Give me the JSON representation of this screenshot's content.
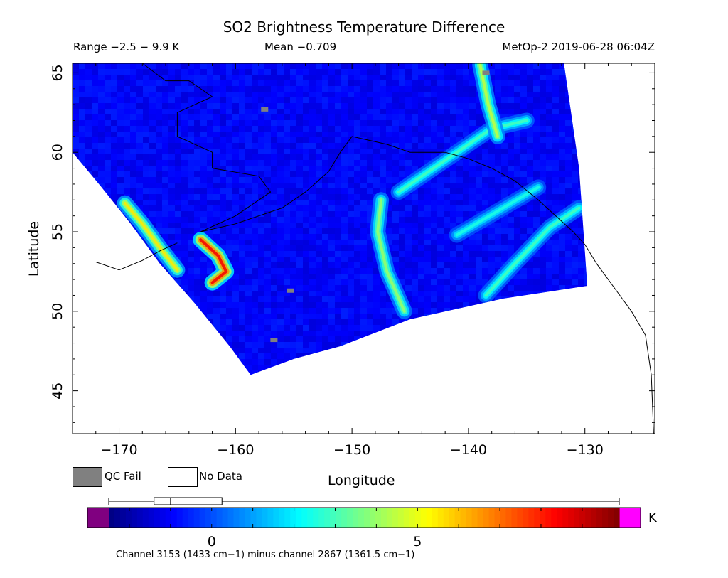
{
  "header": {
    "title": "SO2 Brightness Temperature Difference",
    "range": "Range −2.5 − 9.9 K",
    "mean": "Mean −0.709",
    "satellite_time": "MetOp-2 2019-06-28 06:04Z"
  },
  "legend": {
    "qc_fail": "QC Fail",
    "no_data": "No Data",
    "qc_color": "#808080",
    "no_data_color": "#ffffff"
  },
  "colorbar": {
    "unit": "K",
    "ticks": [
      {
        "value": 0,
        "label": "0"
      },
      {
        "value": 5,
        "label": "5"
      }
    ],
    "range": [
      -2.5,
      9.9
    ],
    "box_q1": -1.4,
    "box_median": -1.0,
    "box_q3": 0.25,
    "underflow_color": "#800080",
    "overflow_color": "#ff00ff",
    "caption": "Channel 3153 (1433 cm−1) minus channel 2867 (1361.5 cm−1)"
  },
  "chart_data": {
    "type": "heatmap",
    "title": "SO2 Brightness Temperature Difference",
    "xlabel": "Longitude",
    "ylabel": "Latitude",
    "xlim": [
      -174,
      -124
    ],
    "ylim": [
      42.3,
      65.6
    ],
    "x_ticks": [
      {
        "value": -170,
        "label": "−170"
      },
      {
        "value": -160,
        "label": "−160"
      },
      {
        "value": -150,
        "label": "−150"
      },
      {
        "value": -140,
        "label": "−140"
      },
      {
        "value": -130,
        "label": "−130"
      }
    ],
    "y_ticks": [
      {
        "value": 45,
        "label": "45"
      },
      {
        "value": 50,
        "label": "50"
      },
      {
        "value": 55,
        "label": "55"
      },
      {
        "value": 60,
        "label": "60"
      },
      {
        "value": 65,
        "label": "65"
      }
    ],
    "value_range_K": [
      -2.5,
      9.9
    ],
    "mean_K": -0.709,
    "background_K": -1.0,
    "swath_boundary": [
      [
        -131.8,
        65.6
      ],
      [
        -130.5,
        59.0
      ],
      [
        -129.8,
        51.6
      ],
      [
        -137.0,
        50.8
      ],
      [
        -145.0,
        49.5
      ],
      [
        -151.0,
        47.8
      ],
      [
        -155.0,
        47.0
      ],
      [
        -158.7,
        46.0
      ],
      [
        -160.5,
        47.8
      ],
      [
        -163.5,
        50.5
      ],
      [
        -166.5,
        53.0
      ],
      [
        -169.0,
        55.5
      ],
      [
        -171.5,
        57.8
      ],
      [
        -174.0,
        60.0
      ],
      [
        -174.0,
        65.6
      ]
    ],
    "features": [
      {
        "name": "arc-west",
        "peak_K": 5.5,
        "points": [
          [
            -169.5,
            56.8
          ],
          [
            -168.0,
            55.5
          ],
          [
            -166.5,
            54.0
          ],
          [
            -165.0,
            52.6
          ]
        ]
      },
      {
        "name": "plume-aleutian",
        "peak_K": 8.5,
        "points": [
          [
            -163.0,
            54.5
          ],
          [
            -161.5,
            53.5
          ],
          [
            -160.8,
            52.5
          ],
          [
            -162.0,
            51.8
          ]
        ]
      },
      {
        "name": "arc-central",
        "peak_K": 4.0,
        "points": [
          [
            -147.5,
            57.0
          ],
          [
            -147.8,
            55.0
          ],
          [
            -147.0,
            52.5
          ],
          [
            -145.5,
            50.0
          ]
        ]
      },
      {
        "name": "arc-northeast",
        "peak_K": 3.0,
        "points": [
          [
            -146.0,
            57.5
          ],
          [
            -142.0,
            59.5
          ],
          [
            -138.0,
            61.5
          ],
          [
            -135.0,
            62.0
          ]
        ]
      },
      {
        "name": "stripe-north",
        "peak_K": 4.5,
        "points": [
          [
            -139.0,
            65.5
          ],
          [
            -138.3,
            63.0
          ],
          [
            -137.5,
            61.0
          ]
        ]
      },
      {
        "name": "arc-southeast",
        "peak_K": 3.0,
        "points": [
          [
            -138.5,
            51.0
          ],
          [
            -136.0,
            53.0
          ],
          [
            -133.0,
            55.3
          ],
          [
            -130.5,
            56.5
          ]
        ]
      },
      {
        "name": "band-mid",
        "peak_K": 2.5,
        "points": [
          [
            -141.0,
            54.8
          ],
          [
            -137.5,
            56.3
          ],
          [
            -134.0,
            57.8
          ]
        ]
      }
    ],
    "qc_fail_cells": [
      [
        -157.5,
        62.7
      ],
      [
        -138.5,
        65.0
      ],
      [
        -155.3,
        51.3
      ],
      [
        -156.7,
        48.2
      ]
    ]
  }
}
